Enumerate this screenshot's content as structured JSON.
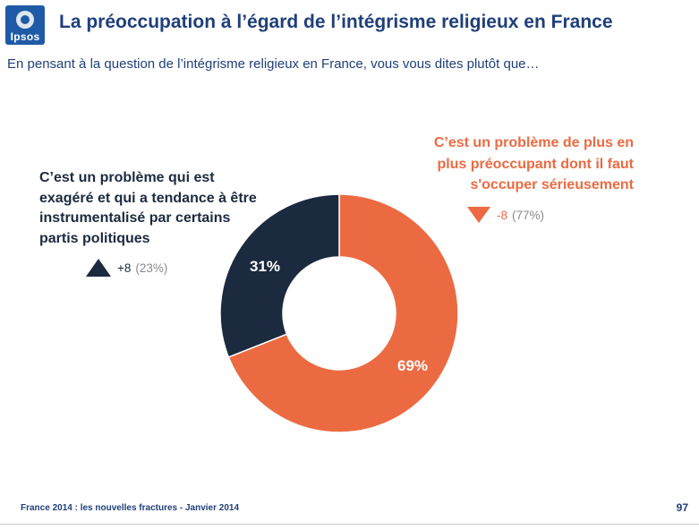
{
  "header": {
    "logo_text": "Ipsos",
    "title": "La préoccupation à l’égard de l’intégrisme religieux en France",
    "subtitle": "En pensant à la question de l’intégrisme religieux en France, vous vous dites plutôt que…"
  },
  "colors": {
    "brand_blue": "#1f5aa6",
    "title_blue": "#1f3f7a",
    "navy": "#1c2a3f",
    "orange": "#ec6a42"
  },
  "chart_data": {
    "type": "pie",
    "donut": true,
    "series": [
      {
        "name": "C’est un problème qui est exagéré et qui a tendance à être instrumentalisé par certains partis politiques",
        "value": 31,
        "value_label": "31%",
        "color": "#1c2a3f",
        "change": "+8",
        "change_direction": "up",
        "previous": "(23%)"
      },
      {
        "name": "C’est un problème de plus en plus préoccupant dont il faut s'occuper sérieusement",
        "value": 69,
        "value_label": "69%",
        "color": "#ec6a42",
        "change": "-8",
        "change_direction": "down",
        "previous": "(77%)"
      }
    ]
  },
  "labels": {
    "left": [
      "C’est un problème qui est",
      "exagéré et qui a tendance à être",
      "instrumentalisé par certains",
      "partis politiques"
    ],
    "right": [
      "C’est un problème de plus en",
      "plus préoccupant dont il faut",
      "s'occuper sérieusement"
    ]
  },
  "footer": {
    "source": "France 2014 : les nouvelles fractures - Janvier 2014",
    "page": "97"
  }
}
